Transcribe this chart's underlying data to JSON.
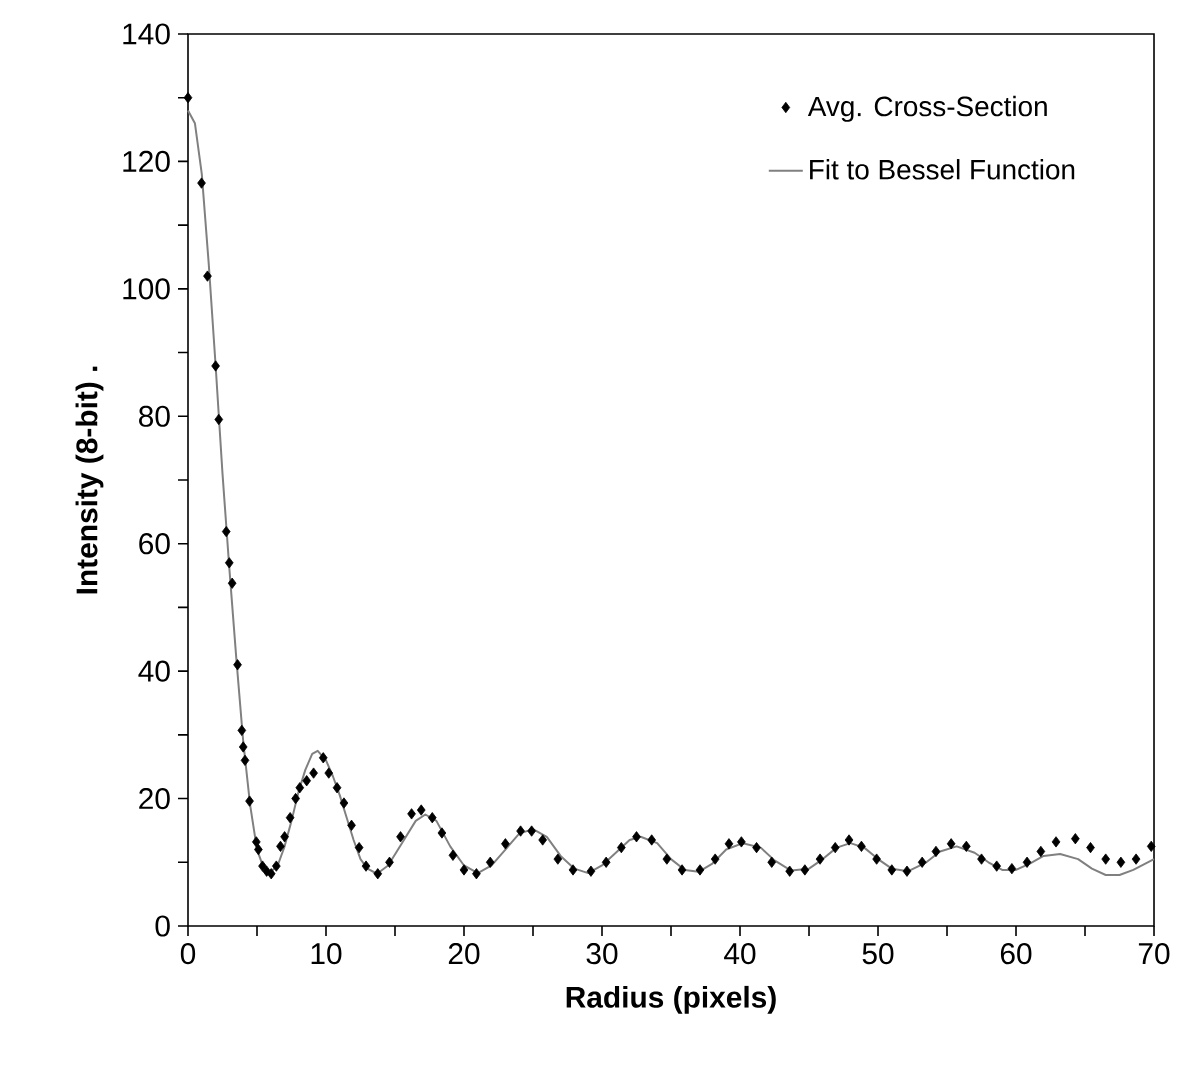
{
  "chart_data": {
    "type": "scatter",
    "xlabel": "Radius (pixels)",
    "ylabel": "Intensity (8-bit) .",
    "xlim": [
      0,
      70
    ],
    "ylim": [
      0,
      140
    ],
    "xticks": [
      0,
      {
        "value": 5,
        "label": null
      },
      10,
      {
        "value": 15,
        "label": null
      },
      20,
      {
        "value": 25,
        "label": null
      },
      30,
      {
        "value": 35,
        "label": null
      },
      40,
      {
        "value": 45,
        "label": null
      },
      50,
      {
        "value": 55,
        "label": null
      },
      60,
      {
        "value": 65,
        "label": null
      },
      70
    ],
    "yticks": [
      0,
      {
        "value": 10,
        "label": null
      },
      20,
      {
        "value": 30,
        "label": null
      },
      40,
      {
        "value": 50,
        "label": null
      },
      60,
      {
        "value": 70,
        "label": null
      },
      80,
      {
        "value": 90,
        "label": null
      },
      100,
      {
        "value": 110,
        "label": null
      },
      120,
      {
        "value": 130,
        "label": null
      },
      140
    ],
    "grid": false,
    "legend": "top right",
    "series": [
      {
        "name": "Avg. Cross-Section",
        "marker": "diamond",
        "color": "#000000",
        "x": [
          0,
          0.98,
          1.41,
          2.0,
          2.23,
          2.77,
          2.99,
          3.2,
          3.59,
          3.9,
          4.0,
          4.13,
          4.46,
          4.95,
          5.1,
          5.4,
          5.7,
          6.03,
          6.4,
          6.7,
          7.0,
          7.4,
          7.8,
          8.1,
          8.6,
          9.1,
          9.8,
          10.2,
          10.8,
          11.3,
          11.85,
          12.4,
          12.9,
          13.75,
          14.6,
          15.4,
          16.2,
          16.9,
          17.7,
          18.4,
          19.2,
          20.0,
          20.9,
          21.9,
          23.0,
          24.1,
          24.9,
          25.7,
          26.8,
          27.9,
          29.2,
          30.3,
          31.4,
          32.5,
          33.6,
          34.7,
          35.8,
          37.1,
          38.2,
          39.2,
          40.1,
          41.2,
          42.3,
          43.6,
          44.7,
          45.8,
          46.9,
          47.9,
          48.8,
          49.9,
          51.0,
          52.1,
          53.2,
          54.2,
          55.3,
          56.4,
          57.5,
          58.6,
          59.7,
          60.8,
          61.8,
          62.9,
          64.3,
          65.4,
          66.5,
          67.6,
          68.7,
          69.8
        ],
        "values": [
          130,
          116.6,
          102,
          87.9,
          79.5,
          61.9,
          57,
          53.8,
          41,
          30.7,
          28.1,
          26,
          19.6,
          13.2,
          12,
          9.4,
          8.6,
          8.2,
          9.4,
          12.5,
          14,
          17,
          20,
          21.7,
          22.8,
          24,
          26.4,
          24,
          21.7,
          19.3,
          15.8,
          12.3,
          9.4,
          8.2,
          10,
          14,
          17.6,
          18.2,
          17,
          14.6,
          11.1,
          8.8,
          8.2,
          10,
          12.9,
          14.9,
          14.9,
          13.5,
          10.5,
          8.8,
          8.6,
          10,
          12.3,
          14,
          13.5,
          10.5,
          8.8,
          8.8,
          10.5,
          12.9,
          13.2,
          12.3,
          10,
          8.6,
          8.8,
          10.5,
          12.3,
          13.5,
          12.5,
          10.5,
          8.8,
          8.6,
          10,
          11.7,
          12.9,
          12.5,
          10.5,
          9.4,
          9,
          10,
          11.7,
          13.2,
          13.7,
          12.3,
          10.5,
          10,
          10.5,
          12.5
        ]
      },
      {
        "name": "Fit to Bessel Function",
        "type": "line",
        "marker": "none",
        "line_style": "solid",
        "color": "#808080",
        "x": [
          0,
          0.5,
          1,
          1.5,
          2,
          2.5,
          3,
          3.5,
          4,
          4.5,
          5,
          5.5,
          6,
          6.5,
          7,
          7.5,
          8,
          8.5,
          9,
          9.4,
          10,
          10.5,
          11,
          11.5,
          12,
          12.5,
          13,
          13.7,
          14.5,
          15.5,
          16.5,
          17.2,
          18,
          19,
          20,
          21,
          22,
          23,
          24,
          25,
          26,
          27,
          28,
          29,
          30,
          31,
          32,
          32.8,
          34,
          35,
          36,
          37,
          38,
          39,
          40.2,
          41.5,
          42.5,
          43.7,
          45,
          46,
          47,
          48,
          49,
          50,
          51,
          52.2,
          53.5,
          54.5,
          55.7,
          57,
          58,
          59,
          60,
          61,
          62,
          63.2,
          64.5,
          65.5,
          66.5,
          67.5,
          68.5,
          70
        ],
        "values": [
          128,
          126,
          118,
          104,
          88,
          71,
          56,
          42,
          29,
          19,
          12,
          9,
          8.5,
          9.5,
          12.5,
          16.5,
          21,
          24.5,
          27,
          27.5,
          26,
          23.5,
          20.5,
          17,
          13.5,
          10.5,
          9,
          8.2,
          9.5,
          13,
          16.5,
          17.5,
          16.5,
          12.5,
          9.5,
          8.3,
          9.5,
          12,
          14.5,
          15.2,
          14,
          11,
          9,
          8.3,
          9.5,
          11.5,
          13.5,
          14,
          13,
          10.5,
          8.8,
          8.5,
          9.8,
          12,
          13,
          12.3,
          10.3,
          8.7,
          9,
          10.5,
          12.3,
          13,
          12.3,
          10.5,
          9,
          8.6,
          10,
          11.7,
          12.5,
          11.5,
          10,
          8.8,
          8.8,
          9.8,
          11,
          11.3,
          10.5,
          9,
          8,
          8,
          8.8,
          10.5
        ]
      }
    ]
  }
}
